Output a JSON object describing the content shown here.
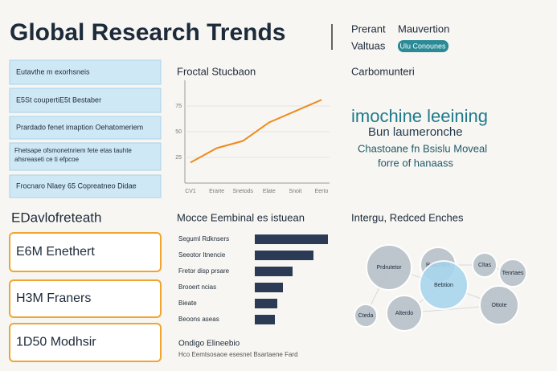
{
  "header": {
    "title": "Global Research Trends",
    "nav": [
      "Prerant",
      "Mauvertion",
      "Valtuas"
    ],
    "badge": "Ulu Conounes"
  },
  "sidebar": {
    "items": [
      "Eutavthe m exorhsneis",
      "E5St coupertiE5t Bestaber",
      "Prardado fenet imaption Oehatomeriem",
      "Fhetsape ofsmonetnriem fete etas tauhte ahsreaseti ce ti efpcoe",
      "Frocnaro Nlaey 65 Copreatneo Didae"
    ],
    "section_title": "EDavlofreteath",
    "stats": [
      "E6M Enethert",
      "H3M Franers",
      "1D50 Modhsir"
    ]
  },
  "line_panel": {
    "type": "line",
    "title": "Froctal Stucbaon",
    "categories": [
      "CV1",
      "Erarte",
      "Snetods",
      "Elate",
      "Snoit",
      "Eerto"
    ],
    "values": [
      20,
      34,
      41,
      59,
      70,
      81
    ],
    "color": "#f08a1c",
    "ylim": [
      0,
      100
    ],
    "yticks": [
      25,
      50,
      75
    ]
  },
  "cloud": {
    "title": "Carbomunteri",
    "words": [
      "imochine leeining",
      "Bun laumeronche",
      "Chastoane fn Bsislu Moveal",
      "forre of hanaass"
    ]
  },
  "bar_panel": {
    "type": "bar",
    "title": "Mocce Eembinal es istuean",
    "categories": [
      "Seguml Rdknsers",
      "Seeotor Itnencie",
      "Fretor disp prsare",
      "Brooert ncias",
      "Bieate",
      "Beoons aseas"
    ],
    "values": [
      91,
      73,
      47,
      35,
      28,
      25
    ],
    "color": "#2b3a55",
    "xlim": [
      0,
      100
    ],
    "footer": "Ondigo Elineebio",
    "note": "Hco Eemtsosaoe esesnet Bsartaene Fard"
  },
  "bubbles": {
    "title": "Intergu, Redced Enches",
    "items": [
      {
        "label": "Prdrutetor",
        "size": 28
      },
      {
        "label": "Raacrsire",
        "size": 22
      },
      {
        "label": "Cltas",
        "size": 15
      },
      {
        "label": "Tenrtaes",
        "size": 17
      },
      {
        "label": "Bebtion",
        "size": 30
      },
      {
        "label": "Alterdo",
        "size": 22
      },
      {
        "label": "Ottote",
        "size": 24
      },
      {
        "label": "Cteda",
        "size": 14
      }
    ]
  }
}
